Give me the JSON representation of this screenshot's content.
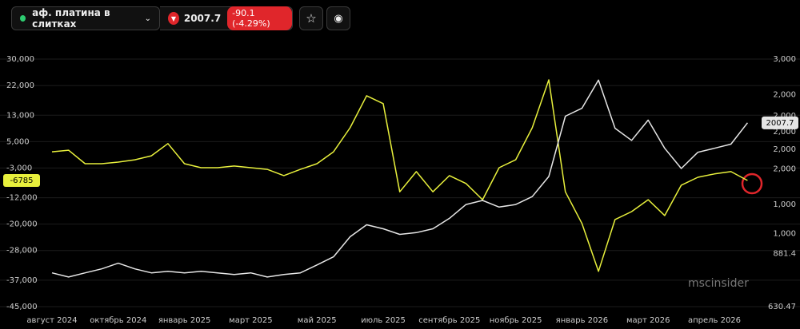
{
  "toolbar": {
    "instrument": "аф. платина в слитках",
    "change": "-90.1 (-4.29%)"
  },
  "watermark": "mscinsider",
  "chart_data": {
    "type": "line",
    "categories": [
      "август 2024",
      null,
      null,
      null,
      "октябрь 2024",
      null,
      null,
      null,
      "январь 2025",
      null,
      null,
      null,
      "март 2025",
      null,
      null,
      null,
      "май 2025",
      null,
      null,
      null,
      "июль 2025",
      null,
      null,
      null,
      "сентябрь 2025",
      null,
      null,
      null,
      "ноябрь 2025",
      null,
      null,
      null,
      "январь 2026",
      null,
      null,
      null,
      "март 2026",
      null,
      null,
      null,
      "апрель 2026",
      null,
      null
    ],
    "series": [
      {
        "color": "#e8f03c",
        "values": [
          1900,
          2400,
          -1700,
          -1700,
          -1200,
          -500,
          700,
          4400,
          -1700,
          -2900,
          -2900,
          -2400,
          -2900,
          -3400,
          -5300,
          -3400,
          -1700,
          1900,
          9200,
          18900,
          16500,
          -10200,
          -4100,
          -10200,
          -5300,
          -7700,
          -12600,
          -2900,
          -500,
          9200,
          23700,
          -10200,
          -19800,
          -34300,
          -18600,
          -16200,
          -12600,
          -17400,
          -8200,
          -5800,
          -4800,
          -4100,
          -6785
        ]
      },
      {
        "name": "аф. платина в слитках",
        "color": "#e6e6e6",
        "axis": "y2",
        "values": [
          780,
          760,
          780,
          800,
          829,
          800,
          780,
          788,
          780,
          788,
          780,
          772,
          780,
          760,
          772,
          780,
          820,
          863,
          979,
          1056,
          1030,
          994,
          1005,
          1030,
          1100,
          1200,
          1231,
          1181,
          1200,
          1261,
          1432,
          2093,
          2200,
          2628,
          1940,
          1797,
          2043,
          1710,
          1506,
          1668,
          1710,
          1755,
          2007.7
        ]
      }
    ],
    "ylim": [
      -45000,
      30000
    ],
    "yticks": [
      {
        "value": 30000,
        "label": "30,000"
      },
      {
        "value": 22000,
        "label": "22,000"
      },
      {
        "value": 13000,
        "label": "13,000"
      },
      {
        "value": 5000,
        "label": "5,000"
      },
      {
        "value": -3000,
        "label": "-3,000"
      },
      {
        "value": -12000,
        "label": "-12,000"
      },
      {
        "value": -20000,
        "label": "-20,000"
      },
      {
        "value": -28000,
        "label": "-28,000"
      },
      {
        "value": -37000,
        "label": "-37,000"
      },
      {
        "value": -45000,
        "label": "-45,000"
      }
    ],
    "y2lim": [
      630.47,
      3000
    ],
    "y2log": true,
    "y2ticks": [
      {
        "value": 3000,
        "label": "3,000"
      },
      {
        "value": 2400,
        "label": "2,000"
      },
      {
        "value": 2100,
        "label": "2,000"
      },
      {
        "value": 1900,
        "label": "2,000"
      },
      {
        "value": 1700,
        "label": "2,000"
      },
      {
        "value": 1500,
        "label": "2,000"
      },
      {
        "value": 1200,
        "label": "1,000"
      },
      {
        "value": 1000,
        "label": "1,000"
      },
      881.4,
      630.47
    ],
    "grid": true
  }
}
